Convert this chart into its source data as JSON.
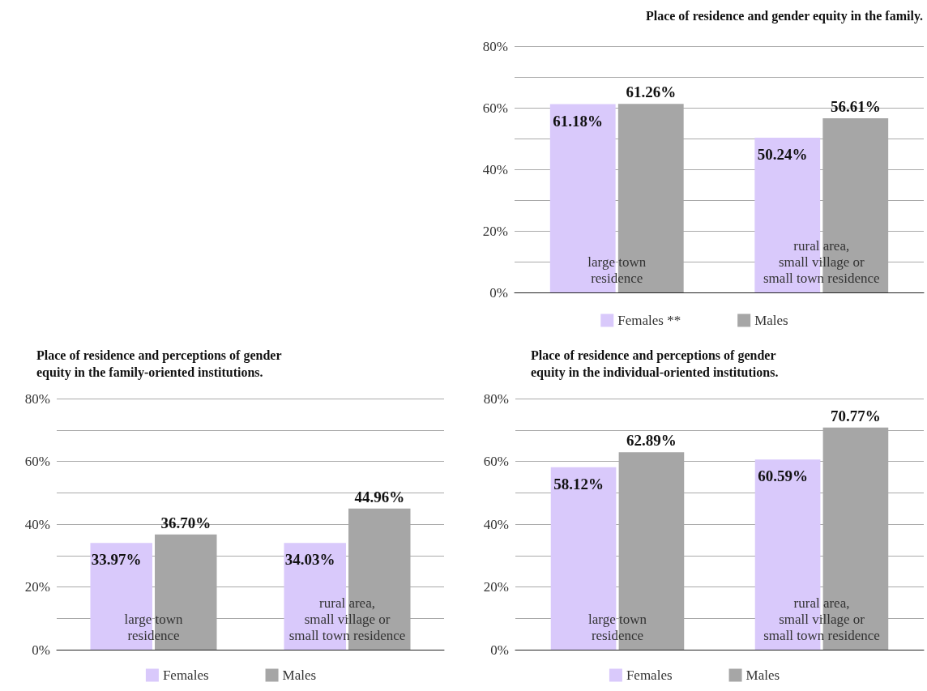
{
  "chart_data": [
    {
      "type": "bar",
      "title": "Place of residence and gender equity in the family.",
      "categories": [
        "large town\nresidence",
        "rural area,\nsmall village or\nsmall town residence"
      ],
      "series": [
        {
          "name": "Females **",
          "color": "#d9c9fb",
          "values": [
            61.18,
            50.24
          ],
          "value_labels": [
            "61.18%",
            "50.24%"
          ]
        },
        {
          "name": "Males",
          "color": "#a6a6a6",
          "values": [
            61.26,
            56.61
          ],
          "value_labels": [
            "61.26%",
            "56.61%"
          ]
        }
      ],
      "ylim": [
        0,
        80
      ],
      "yticks": [
        {
          "value": 0,
          "label": "0%"
        },
        {
          "value": 10,
          "label": null
        },
        {
          "value": 20,
          "label": "20%"
        },
        {
          "value": 30,
          "label": null
        },
        {
          "value": 40,
          "label": "40%"
        },
        {
          "value": 50,
          "label": null
        },
        {
          "value": 60,
          "label": "60%"
        },
        {
          "value": 70,
          "label": null
        },
        {
          "value": 80,
          "label": "80%"
        }
      ],
      "grid": "y",
      "legend": "bottom"
    },
    {
      "type": "bar",
      "title": "Place of residence and perceptions of gender\nequity in the family-oriented institutions.",
      "categories": [
        "large town\nresidence",
        "rural area,\nsmall village or\nsmall town residence"
      ],
      "series": [
        {
          "name": "Females",
          "color": "#d9c9fb",
          "values": [
            33.97,
            34.03
          ],
          "value_labels": [
            "33.97%",
            "34.03%"
          ]
        },
        {
          "name": "Males",
          "color": "#a6a6a6",
          "values": [
            36.7,
            44.96
          ],
          "value_labels": [
            "36.70%",
            "44.96%"
          ]
        }
      ],
      "ylim": [
        0,
        80
      ],
      "yticks": [
        {
          "value": 0,
          "label": "0%"
        },
        {
          "value": 10,
          "label": null
        },
        {
          "value": 20,
          "label": "20%"
        },
        {
          "value": 30,
          "label": null
        },
        {
          "value": 40,
          "label": "40%"
        },
        {
          "value": 50,
          "label": null
        },
        {
          "value": 60,
          "label": "60%"
        },
        {
          "value": 70,
          "label": null
        },
        {
          "value": 80,
          "label": "80%"
        }
      ],
      "grid": "y",
      "legend": "bottom"
    },
    {
      "type": "bar",
      "title": "Place of residence and perceptions of gender\nequity in the individual-oriented institutions.",
      "categories": [
        "large town\nresidence",
        "rural area,\nsmall village or\nsmall town residence"
      ],
      "series": [
        {
          "name": "Females",
          "color": "#d9c9fb",
          "values": [
            58.12,
            60.59
          ],
          "value_labels": [
            "58.12%",
            "60.59%"
          ]
        },
        {
          "name": "Males",
          "color": "#a6a6a6",
          "values": [
            62.89,
            70.77
          ],
          "value_labels": [
            "62.89%",
            "70.77%"
          ]
        }
      ],
      "ylim": [
        0,
        80
      ],
      "yticks": [
        {
          "value": 0,
          "label": "0%"
        },
        {
          "value": 10,
          "label": null
        },
        {
          "value": 20,
          "label": "20%"
        },
        {
          "value": 30,
          "label": null
        },
        {
          "value": 40,
          "label": "40%"
        },
        {
          "value": 50,
          "label": null
        },
        {
          "value": 60,
          "label": "60%"
        },
        {
          "value": 70,
          "label": null
        },
        {
          "value": 80,
          "label": "80%"
        }
      ],
      "grid": "y",
      "legend": "bottom"
    }
  ]
}
